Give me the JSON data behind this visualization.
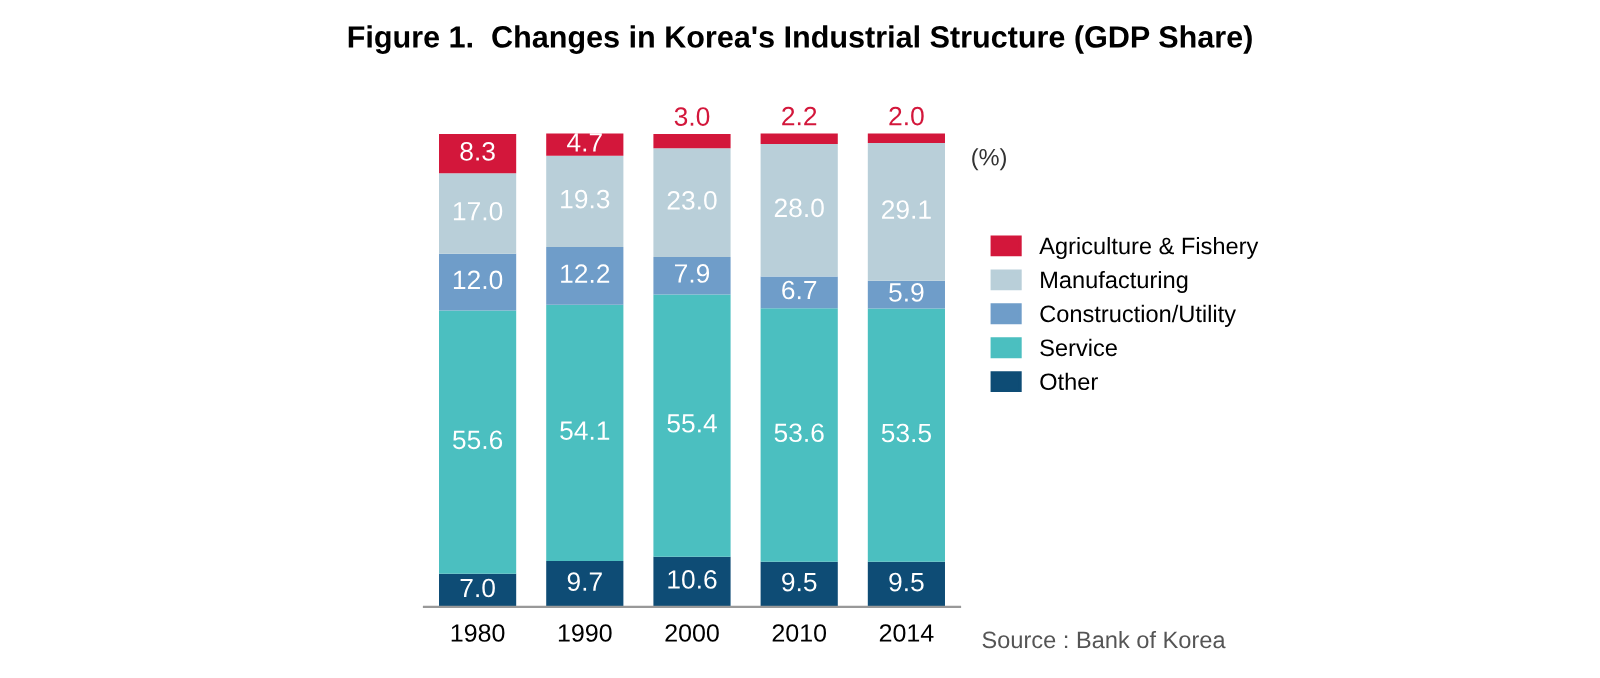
{
  "chart_data": {
    "type": "bar",
    "stacked": true,
    "legend": "right",
    "title": "Figure 1.  Changes in Korea's Industrial Structure (GDP Share)",
    "categories": [
      "1980",
      "1990",
      "2000",
      "2010",
      "2014"
    ],
    "series": [
      {
        "name": "Other",
        "color": "#0e4c75",
        "values": [
          7.0,
          9.7,
          10.6,
          9.5,
          9.5
        ],
        "value_labels": [
          "7.0",
          "9.7",
          "10.6",
          "9.5",
          "9.5"
        ]
      },
      {
        "name": "Service",
        "color": "#4bbfc0",
        "values": [
          55.6,
          54.1,
          55.4,
          53.6,
          53.5
        ],
        "value_labels": [
          "55.6",
          "54.1",
          "55.4",
          "53.6",
          "53.5"
        ]
      },
      {
        "name": "Construction/Utility",
        "color": "#6f9dc9",
        "values": [
          12.0,
          12.2,
          7.9,
          6.7,
          5.9
        ],
        "value_labels": [
          "12.0",
          "12.2",
          "7.9",
          "6.7",
          "5.9"
        ]
      },
      {
        "name": "Manufacturing",
        "color": "#b9cfd9",
        "values": [
          17.0,
          19.3,
          23.0,
          28.0,
          29.1
        ],
        "value_labels": [
          "17.0",
          "19.3",
          "23.0",
          "28.0",
          "29.1"
        ]
      },
      {
        "name": "Agriculture & Fishery",
        "color": "#d3173b",
        "values": [
          8.3,
          4.7,
          3.0,
          2.2,
          2.0
        ],
        "value_labels": [
          "8.3",
          "4.7",
          "3.0",
          "2.2",
          "2.0"
        ]
      }
    ],
    "annotations": [
      "(%)",
      "Source : Bank of Korea"
    ]
  }
}
